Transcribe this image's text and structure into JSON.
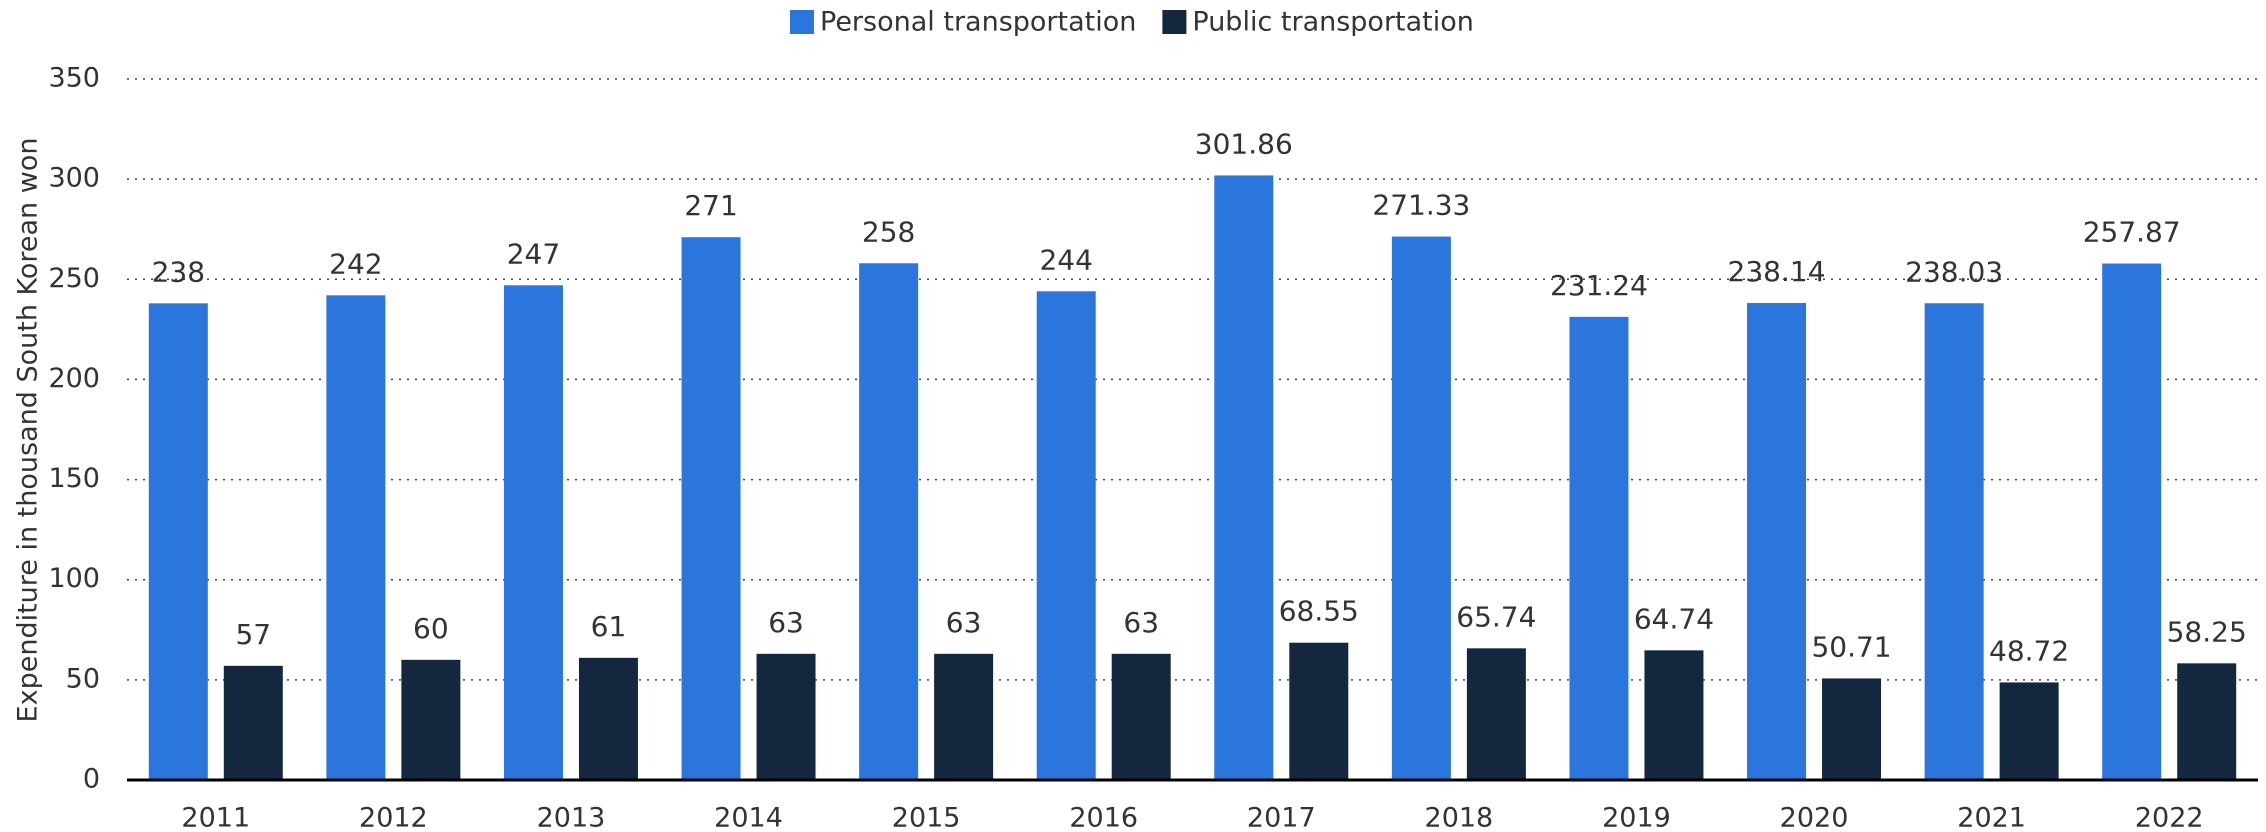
{
  "chart_data": {
    "type": "bar",
    "y_axis_label": "Expenditure in thousand South Korean won",
    "categories": [
      "2011",
      "2012",
      "2013",
      "2014",
      "2015",
      "2016",
      "2017",
      "2018",
      "2019",
      "2020",
      "2021",
      "2022"
    ],
    "series": [
      {
        "name": "Personal transportation",
        "color": "#2a76dd",
        "values": [
          238,
          242,
          247,
          271,
          258,
          244,
          301.86,
          271.33,
          231.24,
          238.14,
          238.03,
          257.87
        ]
      },
      {
        "name": "Public transportation",
        "color": "#13283f",
        "values": [
          57,
          60,
          61,
          63,
          63,
          63,
          68.55,
          65.74,
          64.74,
          50.71,
          48.72,
          58.25
        ]
      }
    ],
    "ylim": [
      0,
      350
    ],
    "yticks": [
      0,
      50,
      100,
      150,
      200,
      250,
      300,
      350
    ],
    "grid": true,
    "legend": "top"
  }
}
